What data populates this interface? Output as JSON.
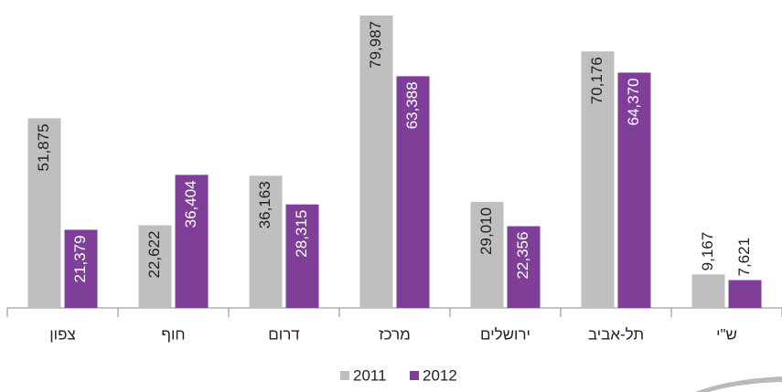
{
  "chart_data": {
    "type": "bar",
    "categories": [
      "צפון",
      "חוף",
      "דרום",
      "מרכז",
      "ירושלים",
      "תל-אביב",
      "ש\"י"
    ],
    "series": [
      {
        "name": "2011",
        "color": "#bfbfbf",
        "values": [
          51875,
          22622,
          36163,
          79987,
          29010,
          70176,
          9167
        ],
        "value_labels": [
          "51,875",
          "22,622",
          "36,163",
          "79,987",
          "29,010",
          "70,176",
          "9,167"
        ]
      },
      {
        "name": "2012",
        "color": "#7f3f98",
        "values": [
          21379,
          36404,
          28315,
          63388,
          22356,
          64370,
          7621
        ],
        "value_labels": [
          "21,379",
          "36,404",
          "28,315",
          "63,388",
          "22,356",
          "64,370",
          "7,621"
        ]
      }
    ]
  }
}
